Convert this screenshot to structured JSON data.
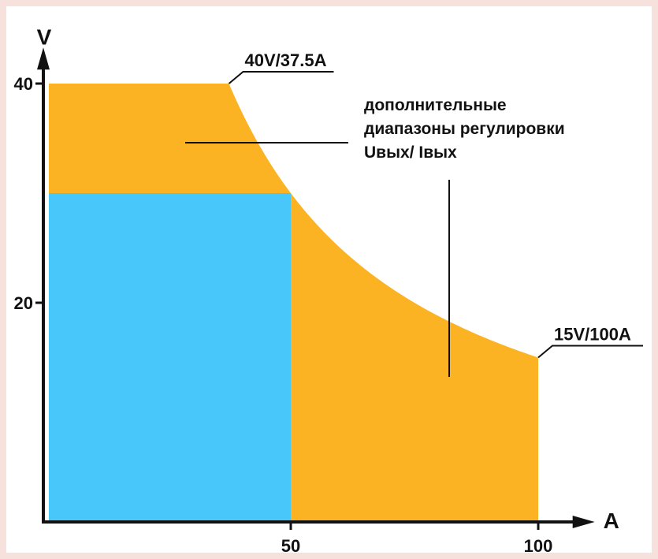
{
  "colors": {
    "page_background": "#f7e1dc",
    "plot_background": "#ffffff",
    "extended_range": "#fbb323",
    "base_range": "#48c8fa",
    "axis": "#111111",
    "text": "#111111"
  },
  "chart_data": {
    "type": "area",
    "xlabel": "A",
    "ylabel": "V",
    "xlim": [
      0,
      106
    ],
    "ylim": [
      0,
      43
    ],
    "x_ticks": [
      50,
      100
    ],
    "y_ticks": [
      20,
      40
    ],
    "grid": false,
    "regions": [
      {
        "name": "base",
        "color": "#48c8fa",
        "x_range": [
          0,
          50
        ],
        "y_range": [
          0,
          30
        ]
      },
      {
        "name": "extended",
        "color": "#fbb323",
        "boundary": [
          {
            "x": 0,
            "y": 40
          },
          {
            "x": 37.5,
            "y": 40
          },
          {
            "x": 40,
            "y": 37.5
          },
          {
            "x": 45,
            "y": 33.3
          },
          {
            "x": 50,
            "y": 30
          },
          {
            "x": 60,
            "y": 25
          },
          {
            "x": 70,
            "y": 21.4
          },
          {
            "x": 80,
            "y": 18.75
          },
          {
            "x": 90,
            "y": 16.7
          },
          {
            "x": 100,
            "y": 15
          }
        ]
      }
    ],
    "points": [
      {
        "x": 37.5,
        "y": 40,
        "label": "40V/37.5A"
      },
      {
        "x": 100,
        "y": 15,
        "label": "15V/100A"
      }
    ],
    "annotation": {
      "lines": [
        "дополнительные",
        "диапазоны регулировки",
        "Uвых/ Iвых"
      ]
    }
  }
}
